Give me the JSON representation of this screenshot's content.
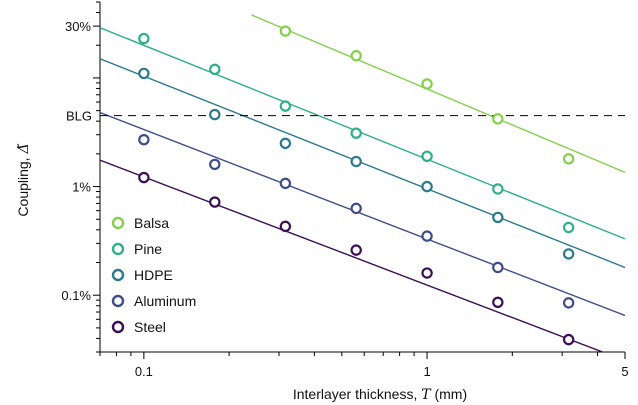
{
  "chart_data": {
    "type": "scatter",
    "xlabel": "Interlayer thickness, T (mm)",
    "xlabel_main": "Interlayer thickness, ",
    "xlabel_var": "T",
    "xlabel_unit": " (mm)",
    "ylabel": "Coupling, Δ̃",
    "ylabel_main": "Coupling, ",
    "ylabel_var": "Δ̃",
    "xscale": "log",
    "yscale": "log",
    "xlim": [
      0.07,
      5
    ],
    "ylim": [
      0.0003,
      0.5
    ],
    "xticks": [
      {
        "value": 0.1,
        "label": "0.1"
      },
      {
        "value": 1,
        "label": "1"
      },
      {
        "value": 5,
        "label": "5"
      }
    ],
    "yticks": [
      {
        "value": 0.001,
        "label": "0.1%"
      },
      {
        "value": 0.01,
        "label": "1%"
      },
      {
        "value": 0.3,
        "label": "30%"
      }
    ],
    "reference_line": {
      "label": "BLG",
      "value": 0.045,
      "style": "dashed"
    },
    "x": [
      0.1,
      0.178,
      0.316,
      0.562,
      1.0,
      1.778,
      3.162
    ],
    "series": [
      {
        "name": "Balsa",
        "color": "#86cf4a",
        "x": [
          0.316,
          0.562,
          1.0,
          1.778,
          3.162
        ],
        "values": [
          0.27,
          0.16,
          0.088,
          0.042,
          0.018
        ],
        "fit": {
          "x": [
            0.24,
            5
          ],
          "y": [
            0.38,
            0.0135
          ]
        }
      },
      {
        "name": "Pine",
        "color": "#2fb08a",
        "x": [
          0.1,
          0.178,
          0.316,
          0.562,
          1.0,
          1.778,
          3.162
        ],
        "values": [
          0.23,
          0.12,
          0.055,
          0.031,
          0.019,
          0.0095,
          0.0042
        ],
        "fit": {
          "x": [
            0.07,
            5
          ],
          "y": [
            0.29,
            0.0033
          ]
        }
      },
      {
        "name": "HDPE",
        "color": "#2c7a8c",
        "x": [
          0.1,
          0.178,
          0.316,
          0.562,
          1.0,
          1.778,
          3.162
        ],
        "values": [
          0.11,
          0.046,
          0.025,
          0.017,
          0.01,
          0.0052,
          0.0024
        ],
        "fit": {
          "x": [
            0.07,
            5
          ],
          "y": [
            0.15,
            0.0018
          ]
        }
      },
      {
        "name": "Aluminum",
        "color": "#3e4d88",
        "x": [
          0.1,
          0.178,
          0.316,
          0.562,
          1.0,
          1.778,
          3.162
        ],
        "values": [
          0.027,
          0.016,
          0.0107,
          0.0063,
          0.0035,
          0.0018,
          0.00085
        ],
        "fit": {
          "x": [
            0.07,
            5
          ],
          "y": [
            0.048,
            0.00065
          ]
        }
      },
      {
        "name": "Steel",
        "color": "#3a0f55",
        "x": [
          0.1,
          0.178,
          0.316,
          0.562,
          1.0,
          1.778,
          3.162
        ],
        "values": [
          0.0121,
          0.0072,
          0.0043,
          0.0026,
          0.0016,
          0.00086,
          0.00039
        ],
        "fit": {
          "x": [
            0.07,
            5
          ],
          "y": [
            0.0175,
            0.00025
          ]
        }
      }
    ],
    "legend_position": "bottom-left",
    "grid": false
  }
}
